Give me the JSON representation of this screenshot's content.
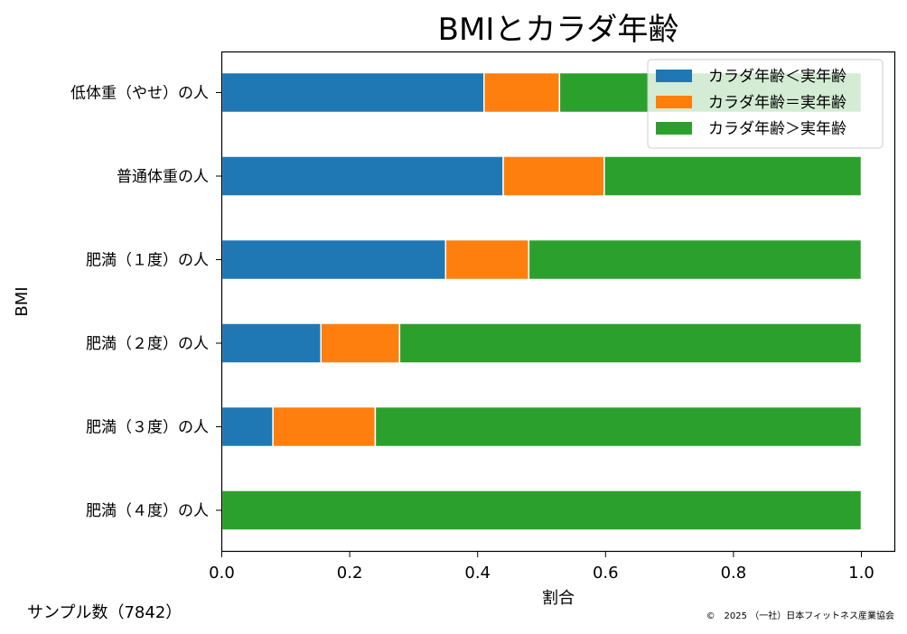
{
  "chart_data": {
    "type": "bar",
    "orientation": "horizontal",
    "stacked": true,
    "title": "BMIとカラダ年齢",
    "xlabel": "割合",
    "ylabel": "BMI",
    "xlim": [
      0,
      1.0
    ],
    "xticks": [
      "0.0",
      "0.2",
      "0.4",
      "0.6",
      "0.8",
      "1.0"
    ],
    "categories": [
      "低体重（やせ）の人",
      "普通体重の人",
      "肥満（１度）の人",
      "肥満（２度）の人",
      "肥満（３度）の人",
      "肥満（４度）の人"
    ],
    "series": [
      {
        "name": "カラダ年齢＜実年齢",
        "color": "#1f77b4",
        "values": [
          0.41,
          0.44,
          0.35,
          0.155,
          0.08,
          0.0
        ]
      },
      {
        "name": "カラダ年齢＝実年齢",
        "color": "#ff7f0e",
        "values": [
          0.118,
          0.158,
          0.13,
          0.123,
          0.16,
          0.0
        ]
      },
      {
        "name": "カラダ年齢＞実年齢",
        "color": "#2ca02c",
        "values": [
          0.472,
          0.402,
          0.52,
          0.722,
          0.76,
          1.0
        ]
      }
    ],
    "legend": "top-right",
    "grid": false
  },
  "footer": {
    "sample_label": "サンプル数（7842）",
    "copyright": "©　2025 （一社）日本フィットネス産業協会"
  }
}
